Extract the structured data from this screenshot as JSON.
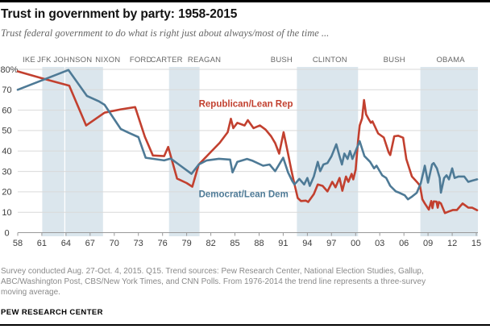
{
  "header": {
    "title": "Trust in government by party: 1958-2015",
    "subtitle": "Trust federal government to do what is right just about always/most of the time ..."
  },
  "footer": {
    "note": "Survey conducted Aug. 27-Oct. 4, 2015. Q15. Trend sources: Pew Research Center, National Election Studies, Gallup, ABC/Washington Post, CBS/New York Times, and CNN Polls. From 1976-2014 the trend line represents a three-survey moving average.",
    "source": "PEW RESEARCH CENTER"
  },
  "chart_data": {
    "type": "line",
    "title": "Trust in government by party: 1958-2015",
    "x_axis": {
      "range": [
        1958,
        2015.2
      ],
      "ticks_years": [
        1958,
        1961,
        1964,
        1967,
        1970,
        1973,
        1976,
        1979,
        1982,
        1985,
        1988,
        1991,
        1994,
        1997,
        2000,
        2003,
        2006,
        2009,
        2012,
        2015
      ],
      "tick_labels": [
        "58",
        "61",
        "64",
        "67",
        "70",
        "73",
        "76",
        "79",
        "82",
        "85",
        "88",
        "91",
        "94",
        "97",
        "00",
        "03",
        "06",
        "09",
        "12",
        "15"
      ]
    },
    "y_axis": {
      "range": [
        0,
        80
      ],
      "ticks": [
        0,
        10,
        20,
        30,
        40,
        50,
        60,
        70,
        80
      ],
      "tick_labels": [
        "0",
        "10",
        "20",
        "30",
        "40",
        "50",
        "60",
        "70",
        "80%"
      ]
    },
    "grid": "horizontal",
    "presidents": [
      {
        "label": "IKE",
        "year": 1959.4
      },
      {
        "label": "JFK",
        "year": 1961.3
      },
      {
        "label": "JOHNSON",
        "year": 1964.85
      },
      {
        "label": "NIXON",
        "year": 1969.2
      },
      {
        "label": "FORD",
        "year": 1973.3
      },
      {
        "label": "CARTER",
        "year": 1976.5
      },
      {
        "label": "REAGAN",
        "year": 1981.2
      },
      {
        "label": "BUSH",
        "year": 1990.8
      },
      {
        "label": "CLINTON",
        "year": 1996.8
      },
      {
        "label": "BUSH",
        "year": 2004.8
      },
      {
        "label": "OBAMA",
        "year": 2011.8
      }
    ],
    "bands": {
      "color": "#dbe6ed",
      "spans": [
        [
          1961.05,
          1968.6
        ],
        [
          1976.8,
          1980.6
        ],
        [
          1992.7,
          2000.3
        ],
        [
          2008.05,
          2015.2
        ]
      ],
      "separators": [
        1963.85
      ]
    },
    "colors": {
      "republican": "#c2402f",
      "democrat": "#4e7a96"
    },
    "series": [
      {
        "key": "republican",
        "name": "Republican/Lean Rep",
        "color": "#c2402f",
        "label_year": 1980.5,
        "label_value": 63.2,
        "points": [
          [
            1958,
            79
          ],
          [
            1961.3,
            75.3
          ],
          [
            1964.4,
            72
          ],
          [
            1966.5,
            52.5
          ],
          [
            1968.8,
            58.8
          ],
          [
            1970.8,
            60.4
          ],
          [
            1972.6,
            61.5
          ],
          [
            1973.8,
            47
          ],
          [
            1974.8,
            37.8
          ],
          [
            1976.2,
            37.5
          ],
          [
            1976.7,
            42
          ],
          [
            1977.8,
            26.5
          ],
          [
            1979,
            24.3
          ],
          [
            1979.7,
            22.5
          ],
          [
            1980.5,
            33.4
          ],
          [
            1981.8,
            38.7
          ],
          [
            1983.1,
            44
          ],
          [
            1984.1,
            49.2
          ],
          [
            1984.5,
            55.8
          ],
          [
            1984.8,
            51.2
          ],
          [
            1985.3,
            53.8
          ],
          [
            1986.2,
            52.5
          ],
          [
            1986.6,
            55.1
          ],
          [
            1987.3,
            51.2
          ],
          [
            1988.1,
            52.5
          ],
          [
            1988.8,
            50.5
          ],
          [
            1989.5,
            47.2
          ],
          [
            1990,
            43.9
          ],
          [
            1990.5,
            38.7
          ],
          [
            1991.05,
            49.2
          ],
          [
            1991.6,
            38.7
          ],
          [
            1992,
            30.8
          ],
          [
            1992.3,
            25.5
          ],
          [
            1992.8,
            17
          ],
          [
            1993.2,
            15.5
          ],
          [
            1993.8,
            15.7
          ],
          [
            1994.1,
            15
          ],
          [
            1994.8,
            18.9
          ],
          [
            1995.3,
            23.6
          ],
          [
            1995.9,
            22.9
          ],
          [
            1996.5,
            20.2
          ],
          [
            1997.1,
            24.9
          ],
          [
            1997.5,
            22.2
          ],
          [
            1998,
            26.8
          ],
          [
            1998.35,
            20.5
          ],
          [
            1998.8,
            27.5
          ],
          [
            1999.1,
            24.9
          ],
          [
            1999.5,
            28.8
          ],
          [
            1999.7,
            26.1
          ],
          [
            2000,
            30.8
          ],
          [
            2000.3,
            45
          ],
          [
            2000.5,
            52.5
          ],
          [
            2000.8,
            56
          ],
          [
            2001.05,
            65
          ],
          [
            2001.3,
            58
          ],
          [
            2001.6,
            55.8
          ],
          [
            2001.9,
            53.8
          ],
          [
            2002.1,
            54.5
          ],
          [
            2002.8,
            48.6
          ],
          [
            2003.5,
            46.6
          ],
          [
            2004.1,
            39.4
          ],
          [
            2004.3,
            38
          ],
          [
            2004.8,
            47.2
          ],
          [
            2005.3,
            47.5
          ],
          [
            2005.9,
            46.5
          ],
          [
            2006.3,
            36
          ],
          [
            2007,
            27.5
          ],
          [
            2007.7,
            24.5
          ],
          [
            2008,
            23
          ],
          [
            2008.3,
            16.3
          ],
          [
            2008.6,
            14.3
          ],
          [
            2009.1,
            11.3
          ],
          [
            2009.4,
            15.5
          ],
          [
            2009.55,
            12
          ],
          [
            2009.7,
            15.3
          ],
          [
            2010.05,
            15.2
          ],
          [
            2010.2,
            12.2
          ],
          [
            2010.35,
            15
          ],
          [
            2010.6,
            14.3
          ],
          [
            2011.1,
            9.6
          ],
          [
            2011.6,
            10.4
          ],
          [
            2012.1,
            11.1
          ],
          [
            2012.6,
            11.1
          ],
          [
            2013.3,
            14.3
          ],
          [
            2014,
            12.3
          ],
          [
            2014.5,
            12.2
          ],
          [
            2015.1,
            11
          ]
        ]
      },
      {
        "key": "democrat",
        "name": "Democrat/Lean Dem",
        "color": "#4e7a96",
        "label_year": 1980.5,
        "label_value": 19,
        "points": [
          [
            1958,
            70
          ],
          [
            1964.3,
            79.7
          ],
          [
            1966.6,
            67
          ],
          [
            1968.1,
            64.3
          ],
          [
            1968.8,
            62.6
          ],
          [
            1970.8,
            50.8
          ],
          [
            1971.8,
            48.9
          ],
          [
            1973,
            46.8
          ],
          [
            1973.9,
            36.7
          ],
          [
            1976.2,
            35.4
          ],
          [
            1977,
            36.3
          ],
          [
            1978.3,
            32.6
          ],
          [
            1979.6,
            28.8
          ],
          [
            1980.5,
            33.4
          ],
          [
            1981.5,
            35.4
          ],
          [
            1983,
            36.2
          ],
          [
            1984.4,
            35.8
          ],
          [
            1984.7,
            29.5
          ],
          [
            1985.3,
            34.7
          ],
          [
            1986.5,
            36.1
          ],
          [
            1987.2,
            35.2
          ],
          [
            1988.5,
            32.8
          ],
          [
            1989.3,
            33.4
          ],
          [
            1990,
            30.1
          ],
          [
            1991,
            36.7
          ],
          [
            1991.6,
            29.5
          ],
          [
            1992.1,
            25.5
          ],
          [
            1992.4,
            23.6
          ],
          [
            1993,
            26.3
          ],
          [
            1993.6,
            23.6
          ],
          [
            1994,
            26.8
          ],
          [
            1994.3,
            22.9
          ],
          [
            1994.8,
            27.5
          ],
          [
            1995.3,
            34.7
          ],
          [
            1995.6,
            30.1
          ],
          [
            1996,
            33.4
          ],
          [
            1996.5,
            34.1
          ],
          [
            1997,
            37.4
          ],
          [
            1997.6,
            43.3
          ],
          [
            1998,
            37.4
          ],
          [
            1998.3,
            33.4
          ],
          [
            1998.6,
            38.7
          ],
          [
            1999,
            36.1
          ],
          [
            1999.3,
            40
          ],
          [
            1999.6,
            36.1
          ],
          [
            2000,
            40
          ],
          [
            2000.5,
            44.8
          ],
          [
            2001.1,
            37.5
          ],
          [
            2001.8,
            34.7
          ],
          [
            2002.3,
            31.5
          ],
          [
            2002.6,
            32.8
          ],
          [
            2003.3,
            28.1
          ],
          [
            2003.8,
            26.8
          ],
          [
            2004.3,
            22.9
          ],
          [
            2005,
            20.2
          ],
          [
            2005.4,
            19.6
          ],
          [
            2006.1,
            18.3
          ],
          [
            2006.5,
            16.3
          ],
          [
            2007,
            17.6
          ],
          [
            2007.6,
            19.5
          ],
          [
            2008.1,
            24.2
          ],
          [
            2008.45,
            30.1
          ],
          [
            2008.6,
            32.8
          ],
          [
            2009,
            24.5
          ],
          [
            2009.5,
            33.4
          ],
          [
            2009.7,
            34.1
          ],
          [
            2010.1,
            31.5
          ],
          [
            2010.45,
            26.8
          ],
          [
            2010.6,
            19.6
          ],
          [
            2011,
            26.8
          ],
          [
            2011.3,
            28.1
          ],
          [
            2011.6,
            26.1
          ],
          [
            2012,
            31.5
          ],
          [
            2012.3,
            26.8
          ],
          [
            2012.8,
            27.5
          ],
          [
            2013.5,
            27.5
          ],
          [
            2014,
            24.9
          ],
          [
            2014.5,
            25.5
          ],
          [
            2015.1,
            26.1
          ]
        ]
      }
    ]
  }
}
